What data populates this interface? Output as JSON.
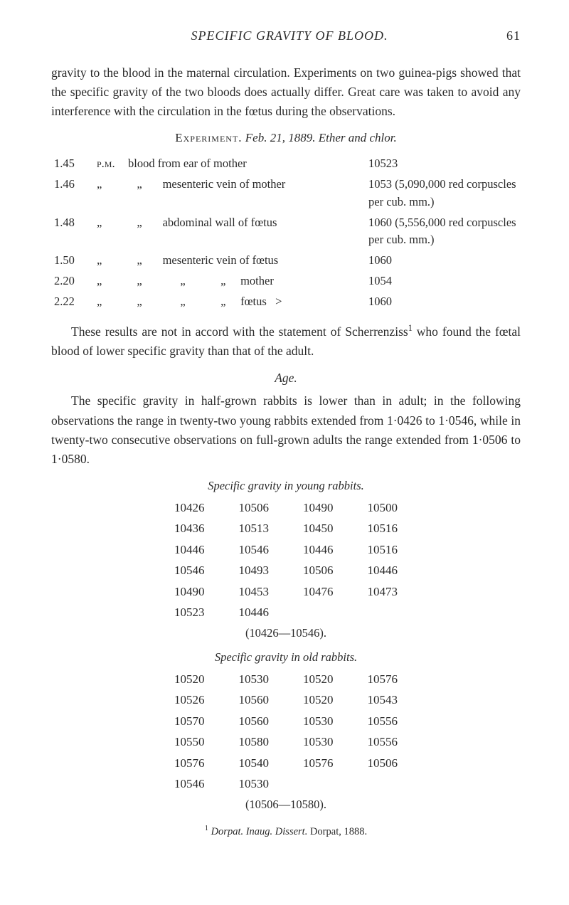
{
  "header": {
    "title": "SPECIFIC GRAVITY OF BLOOD.",
    "page_number": "61"
  },
  "para1": "gravity to the blood in the maternal circulation. Experiments on two guinea-pigs showed that the specific gravity of the two bloods does actually differ. Great care was taken to avoid any interference with the circulation in the fœtus during the observations.",
  "experiment_heading": {
    "label": "Experiment.",
    "rest": "Feb. 21, 1889.   Ether and chlor."
  },
  "exp_rows": [
    {
      "time": "1.45",
      "mer": "p.m.",
      "desc": "blood from ear of mother",
      "val": "10523"
    },
    {
      "time": "1.46",
      "mer": "„",
      "desc": "   „       mesenteric vein of mother",
      "val": "1053 (5,090,000 red cor­puscles per cub. mm.)"
    },
    {
      "time": "1.48",
      "mer": "„",
      "desc": "   „       abdominal wall of fœtus",
      "val": "1060 (5,556,000 red cor­puscles per cub. mm.)"
    },
    {
      "time": "1.50",
      "mer": "„",
      "desc": "   „       mesenteric vein of fœtus",
      "val": "1060"
    },
    {
      "time": "2.20",
      "mer": "„",
      "desc": "   „             „            „     mother",
      "val": "1054"
    },
    {
      "time": "2.22",
      "mer": "„",
      "desc": "   „             „            „     fœtus   >",
      "val": "1060"
    }
  ],
  "para2_a": "These results are not in accord with the statement of Scherrenziss",
  "para2_sup": "1",
  "para2_b": " who found the fœtal blood of lower specific gravity than that of the adult.",
  "age_heading": "Age.",
  "para3": "The specific gravity in half-grown rabbits is lower than in adult; in the following observations the range in twenty-two young rabbits extended from 1·0426 to 1·0546, while in twenty-two consecutive observations on full-grown adults the range extended from 1·0506 to 1·0580.",
  "young_heading": "Specific gravity in young rabbits.",
  "young_table": [
    [
      "10426",
      "10506",
      "10490",
      "10500"
    ],
    [
      "10436",
      "10513",
      "10450",
      "10516"
    ],
    [
      "10446",
      "10546",
      "10446",
      "10516"
    ],
    [
      "10546",
      "10493",
      "10506",
      "10446"
    ],
    [
      "10490",
      "10453",
      "10476",
      "10473"
    ],
    [
      "10523",
      "10446",
      "",
      ""
    ]
  ],
  "young_range": "(10426—10546).",
  "old_heading": "Specific gravity in old rabbits.",
  "old_table": [
    [
      "10520",
      "10530",
      "10520",
      "10576"
    ],
    [
      "10526",
      "10560",
      "10520",
      "10543"
    ],
    [
      "10570",
      "10560",
      "10530",
      "10556"
    ],
    [
      "10550",
      "10580",
      "10530",
      "10556"
    ],
    [
      "10576",
      "10540",
      "10576",
      "10506"
    ],
    [
      "10546",
      "10530",
      "",
      ""
    ]
  ],
  "old_range": "(10506—10580).",
  "footnote": {
    "marker": "1",
    "text_it": "Dorpat. Inaug. Dissert.",
    "text_rest": " Dorpat, 1888."
  }
}
